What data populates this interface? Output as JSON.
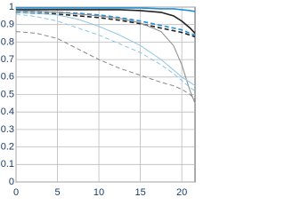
{
  "chart_data": {
    "type": "line",
    "x": [
      0,
      2.5,
      5,
      7.5,
      10,
      12.5,
      15,
      17.5,
      19,
      20,
      21,
      21.6
    ],
    "series": [
      {
        "color": "#222222",
        "dash": false,
        "width": 1.6,
        "values": [
          0.985,
          0.985,
          0.985,
          0.985,
          0.985,
          0.985,
          0.98,
          0.97,
          0.95,
          0.92,
          0.88,
          0.85
        ]
      },
      {
        "color": "#1e8fd6",
        "dash": false,
        "width": 1.6,
        "values": [
          0.995,
          0.995,
          0.995,
          0.995,
          0.995,
          0.995,
          0.995,
          0.99,
          0.99,
          0.985,
          0.98,
          0.975
        ]
      },
      {
        "color": "#222222",
        "dash": true,
        "width": 1.6,
        "values": [
          0.97,
          0.965,
          0.96,
          0.95,
          0.94,
          0.925,
          0.905,
          0.88,
          0.865,
          0.855,
          0.84,
          0.83
        ]
      },
      {
        "color": "#1e8fd6",
        "dash": true,
        "width": 1.6,
        "values": [
          0.98,
          0.975,
          0.97,
          0.965,
          0.955,
          0.94,
          0.92,
          0.895,
          0.88,
          0.87,
          0.85,
          0.84
        ]
      },
      {
        "color": "#888888",
        "dash": false,
        "width": 1,
        "values": [
          0.98,
          0.975,
          0.97,
          0.96,
          0.95,
          0.935,
          0.91,
          0.86,
          0.78,
          0.67,
          0.52,
          0.45
        ]
      },
      {
        "color": "#888888",
        "dash": true,
        "width": 1,
        "values": [
          0.86,
          0.85,
          0.82,
          0.76,
          0.7,
          0.65,
          0.61,
          0.57,
          0.55,
          0.53,
          0.5,
          0.47
        ]
      },
      {
        "color": "#8ec5e8",
        "dash": false,
        "width": 1,
        "values": [
          0.97,
          0.965,
          0.955,
          0.93,
          0.89,
          0.84,
          0.78,
          0.7,
          0.64,
          0.6,
          0.57,
          0.55
        ]
      },
      {
        "color": "#8ec5e8",
        "dash": true,
        "width": 1,
        "values": [
          0.96,
          0.945,
          0.92,
          0.88,
          0.84,
          0.79,
          0.74,
          0.67,
          0.62,
          0.58,
          0.54,
          0.52
        ]
      }
    ],
    "xlim": [
      0,
      21.6
    ],
    "ylim": [
      0,
      1
    ],
    "xticks": [
      0,
      5,
      10,
      15,
      20
    ],
    "yticks": [
      0,
      0.1,
      0.2,
      0.3,
      0.4,
      0.5,
      0.6,
      0.7,
      0.8,
      0.9,
      1
    ],
    "grid": true
  }
}
